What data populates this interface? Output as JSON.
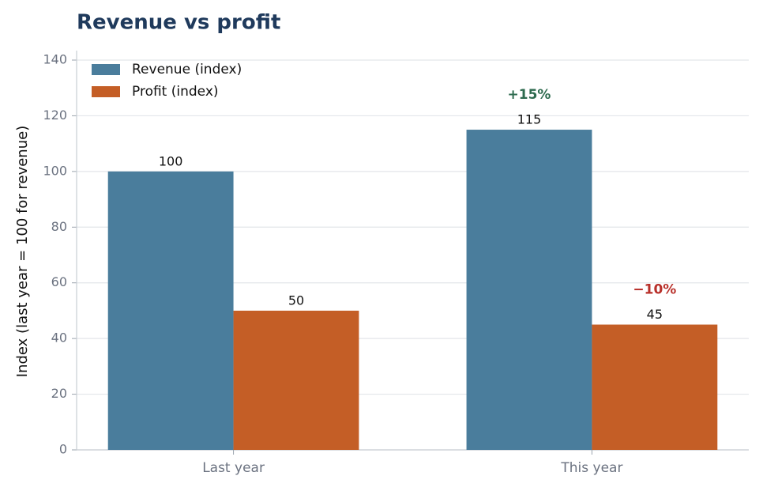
{
  "chart_data": {
    "type": "bar",
    "title": "Revenue vs profit",
    "y_label": "Index (last year = 100 for revenue)",
    "categories": [
      "Last year",
      "This year"
    ],
    "series": [
      {
        "name": "Revenue (index)",
        "color": "#4a7d9c",
        "values": [
          100,
          115
        ]
      },
      {
        "name": "Profit (index)",
        "color": "#c45e26",
        "values": [
          50,
          45
        ]
      }
    ],
    "annotations": [
      {
        "text": "+15%",
        "color": "#2e6b4f"
      },
      {
        "text": "−10%",
        "color": "#b8302a"
      }
    ],
    "ylim": [
      0,
      140
    ],
    "yticks": [
      0,
      20,
      40,
      60,
      80,
      100,
      120,
      140
    ],
    "grid": true,
    "legend": "upper left"
  }
}
